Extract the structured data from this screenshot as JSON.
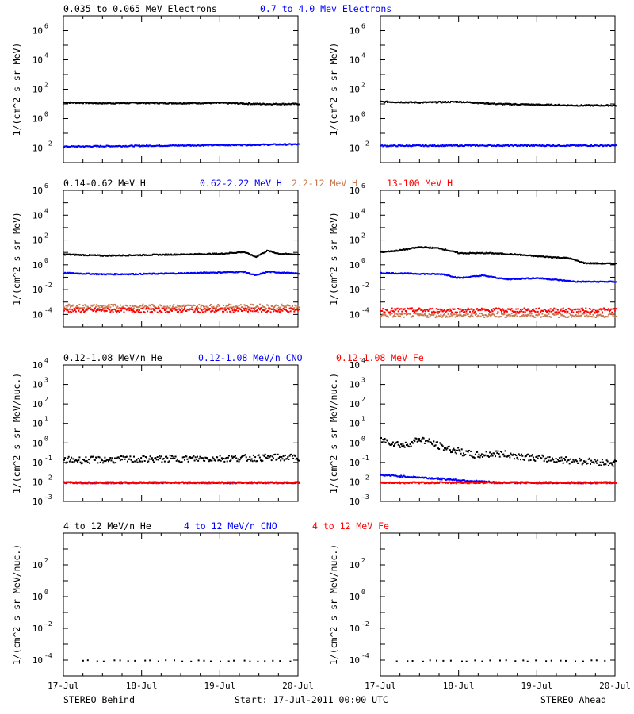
{
  "footer": {
    "left": "STEREO Behind",
    "center": "Start: 17-Jul-2011 00:00 UTC",
    "right": "STEREO Ahead"
  },
  "x_ticks": [
    "17-Jul",
    "18-Jul",
    "19-Jul",
    "20-Jul"
  ],
  "colors": {
    "black": "#000000",
    "blue": "#0000ff",
    "tan": "#c87850",
    "red": "#ff0000"
  },
  "chart_data": [
    {
      "type": "scatter",
      "row": 1,
      "ylabel": "1/(cm^2 s sr MeV)",
      "ylim_log10": [
        -3,
        7
      ],
      "yticks": [
        -2,
        0,
        2,
        4,
        6
      ],
      "titles": [
        {
          "text": "0.035 to 0.065 MeV Electrons",
          "color": "#000000"
        },
        {
          "text": "0.7 to 4.0 Mev Electrons",
          "color": "#0000ff"
        }
      ],
      "x_days": [
        0,
        3
      ],
      "series": [
        {
          "name": "0.035 to 0.065 MeV Electrons",
          "color": "#000000",
          "behind_log10": [
            [
              0,
              1.15
            ],
            [
              0.5,
              1.1
            ],
            [
              1,
              1.12
            ],
            [
              1.5,
              1.1
            ],
            [
              2,
              1.12
            ],
            [
              2.5,
              1.05
            ],
            [
              3,
              1.05
            ]
          ],
          "ahead_log10": [
            [
              0,
              1.2
            ],
            [
              0.5,
              1.15
            ],
            [
              1,
              1.2
            ],
            [
              1.5,
              1.05
            ],
            [
              2,
              1.0
            ],
            [
              2.5,
              0.95
            ],
            [
              3,
              0.95
            ]
          ]
        },
        {
          "name": "0.7 to 4.0 Mev Electrons",
          "color": "#0000ff",
          "behind_log10": [
            [
              0,
              -1.85
            ],
            [
              1,
              -1.8
            ],
            [
              2,
              -1.75
            ],
            [
              3,
              -1.7
            ]
          ],
          "ahead_log10": [
            [
              0,
              -1.8
            ],
            [
              1,
              -1.78
            ],
            [
              2,
              -1.78
            ],
            [
              3,
              -1.78
            ]
          ]
        }
      ]
    },
    {
      "type": "scatter",
      "row": 2,
      "ylabel": "1/(cm^2 s sr MeV)",
      "ylim_log10": [
        -5,
        6
      ],
      "yticks": [
        -4,
        -2,
        0,
        2,
        4,
        6
      ],
      "titles": [
        {
          "text": "0.14-0.62 MeV H",
          "color": "#000000"
        },
        {
          "text": "0.62-2.22 MeV H",
          "color": "#0000ff"
        },
        {
          "text": "2.2-12 MeV H",
          "color": "#c87850"
        },
        {
          "text": "13-100 MeV H",
          "color": "#ff0000"
        }
      ],
      "x_days": [
        0,
        3
      ],
      "series": [
        {
          "name": "0.14-0.62 MeV H",
          "color": "#000000",
          "behind_log10": [
            [
              0,
              0.9
            ],
            [
              0.5,
              0.8
            ],
            [
              1,
              0.85
            ],
            [
              1.5,
              0.9
            ],
            [
              2,
              0.95
            ],
            [
              2.3,
              1.1
            ],
            [
              2.45,
              0.7
            ],
            [
              2.6,
              1.2
            ],
            [
              2.75,
              0.95
            ],
            [
              3,
              0.9
            ]
          ],
          "ahead_log10": [
            [
              0,
              1.1
            ],
            [
              0.2,
              1.2
            ],
            [
              0.5,
              1.5
            ],
            [
              0.75,
              1.4
            ],
            [
              1,
              1.0
            ],
            [
              1.4,
              1.0
            ],
            [
              1.7,
              0.9
            ],
            [
              2.0,
              0.75
            ],
            [
              2.4,
              0.6
            ],
            [
              2.6,
              0.2
            ],
            [
              3,
              0.15
            ]
          ]
        },
        {
          "name": "0.62-2.22 MeV H",
          "color": "#0000ff",
          "behind_log10": [
            [
              0,
              -0.6
            ],
            [
              0.5,
              -0.7
            ],
            [
              1,
              -0.68
            ],
            [
              1.5,
              -0.62
            ],
            [
              2,
              -0.55
            ],
            [
              2.3,
              -0.5
            ],
            [
              2.45,
              -0.8
            ],
            [
              2.6,
              -0.5
            ],
            [
              3,
              -0.65
            ]
          ],
          "ahead_log10": [
            [
              0,
              -0.6
            ],
            [
              0.4,
              -0.65
            ],
            [
              0.8,
              -0.7
            ],
            [
              1.0,
              -1.0
            ],
            [
              1.3,
              -0.8
            ],
            [
              1.6,
              -1.1
            ],
            [
              2.0,
              -1.0
            ],
            [
              2.5,
              -1.3
            ],
            [
              3,
              -1.3
            ]
          ]
        },
        {
          "name": "2.2-12 MeV H",
          "color": "#c87850",
          "behind_log10": [
            [
              0,
              -3.3
            ],
            [
              3,
              -3.3
            ]
          ],
          "ahead_log10": [
            [
              0,
              -4.0
            ],
            [
              3,
              -4.0
            ]
          ]
        },
        {
          "name": "13-100 MeV H",
          "color": "#ff0000",
          "behind_log10": [
            [
              0,
              -3.6
            ],
            [
              3,
              -3.6
            ]
          ],
          "ahead_log10": [
            [
              0,
              -3.6
            ],
            [
              3,
              -3.6
            ]
          ]
        }
      ]
    },
    {
      "type": "scatter",
      "row": 3,
      "ylabel": "1/(cm^2 s sr MeV/nuc.)",
      "ylim_log10": [
        -3,
        4
      ],
      "yticks": [
        -3,
        -2,
        -1,
        0,
        1,
        2,
        3,
        4
      ],
      "titles": [
        {
          "text": "0.12-1.08 MeV/n He",
          "color": "#000000"
        },
        {
          "text": "0.12-1.08 MeV/n CNO",
          "color": "#0000ff"
        },
        {
          "text": "0.12-1.08 MeV Fe",
          "color": "#ff0000"
        }
      ],
      "x_days": [
        0,
        3
      ],
      "series": [
        {
          "name": "0.12-1.08 MeV/n He",
          "color": "#000000",
          "behind_log10": [
            [
              0,
              -0.85
            ],
            [
              1,
              -0.8
            ],
            [
              2,
              -0.75
            ],
            [
              3,
              -0.7
            ]
          ],
          "ahead_log10": [
            [
              0,
              0.2
            ],
            [
              0.3,
              -0.1
            ],
            [
              0.5,
              0.25
            ],
            [
              0.8,
              -0.2
            ],
            [
              1.2,
              -0.6
            ],
            [
              1.5,
              -0.5
            ],
            [
              2,
              -0.75
            ],
            [
              3,
              -1.0
            ]
          ]
        },
        {
          "name": "0.12-1.08 MeV/n CNO",
          "color": "#0000ff",
          "behind_log10": [
            [
              0,
              -2.0
            ],
            [
              3,
              -2.0
            ]
          ],
          "ahead_log10": [
            [
              0,
              -1.6
            ],
            [
              1.5,
              -2.0
            ],
            [
              3,
              -2.0
            ]
          ]
        },
        {
          "name": "0.12-1.08 MeV Fe",
          "color": "#ff0000",
          "behind_log10": [
            [
              0,
              -2.0
            ],
            [
              3,
              -2.0
            ]
          ],
          "ahead_log10": [
            [
              0,
              -2.0
            ],
            [
              3,
              -2.0
            ]
          ]
        }
      ]
    },
    {
      "type": "scatter",
      "row": 4,
      "ylabel": "1/(cm^2 s sr MeV/nuc.)",
      "ylim_log10": [
        -5,
        4
      ],
      "yticks": [
        -4,
        -2,
        0,
        2
      ],
      "titles": [
        {
          "text": "4 to 12 MeV/n He",
          "color": "#000000"
        },
        {
          "text": "4 to 12 MeV/n CNO",
          "color": "#0000ff"
        },
        {
          "text": "4 to 12 MeV Fe",
          "color": "#ff0000"
        }
      ],
      "x_days": [
        0,
        3
      ],
      "series": [
        {
          "name": "4 to 12 MeV/n He",
          "color": "#000000",
          "behind_log10": [
            [
              0,
              -4.0
            ],
            [
              3,
              -4.0
            ]
          ],
          "ahead_log10": [
            [
              0,
              -4.0
            ],
            [
              3,
              -4.0
            ]
          ]
        }
      ]
    }
  ]
}
